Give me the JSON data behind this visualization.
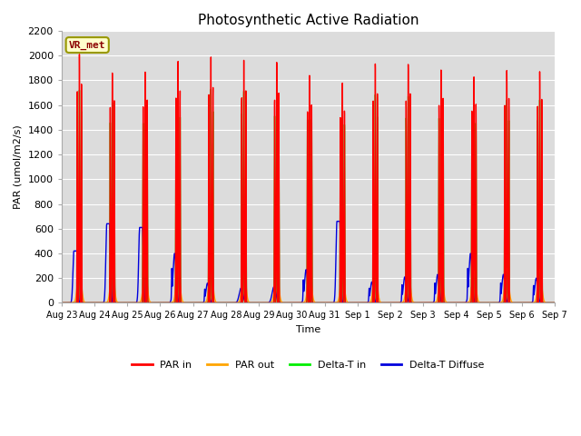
{
  "title": "Photosynthetic Active Radiation",
  "ylabel": "PAR (umol/m2/s)",
  "xlabel": "Time",
  "ylim": [
    0,
    2200
  ],
  "bg_color": "#dcdcdc",
  "legend_labels": [
    "PAR in",
    "PAR out",
    "Delta-T in",
    "Delta-T Diffuse"
  ],
  "legend_colors": [
    "#ff0000",
    "#ffa500",
    "#00ee00",
    "#0000dd"
  ],
  "annotation_text": "VR_met",
  "xtick_labels": [
    "Aug 23",
    "Aug 24",
    "Aug 25",
    "Aug 26",
    "Aug 27",
    "Aug 28",
    "Aug 29",
    "Aug 30",
    "Aug 31",
    "Sep 1",
    "Sep 2",
    "Sep 3",
    "Sep 4",
    "Sep 5",
    "Sep 6",
    "Sep 7"
  ],
  "n_days": 15,
  "day_peaks_PAR_in": [
    2010,
    1860,
    1870,
    1960,
    2000,
    1980,
    1970,
    1870,
    1800,
    1950,
    1940,
    1890,
    1830,
    1880,
    1870
  ],
  "day_peaks_PAR_out": [
    290,
    275,
    280,
    285,
    295,
    295,
    285,
    265,
    250,
    290,
    290,
    285,
    260,
    280,
    270
  ],
  "day_peaks_DeltaT_in": [
    1720,
    1620,
    1620,
    1680,
    1740,
    1730,
    1720,
    1700,
    1640,
    1700,
    1680,
    1670,
    1620,
    1640,
    1640
  ],
  "day_peaks_DeltaT_diffuse": [
    420,
    640,
    610,
    400,
    160,
    120,
    130,
    270,
    660,
    170,
    210,
    230,
    400,
    230,
    200
  ]
}
